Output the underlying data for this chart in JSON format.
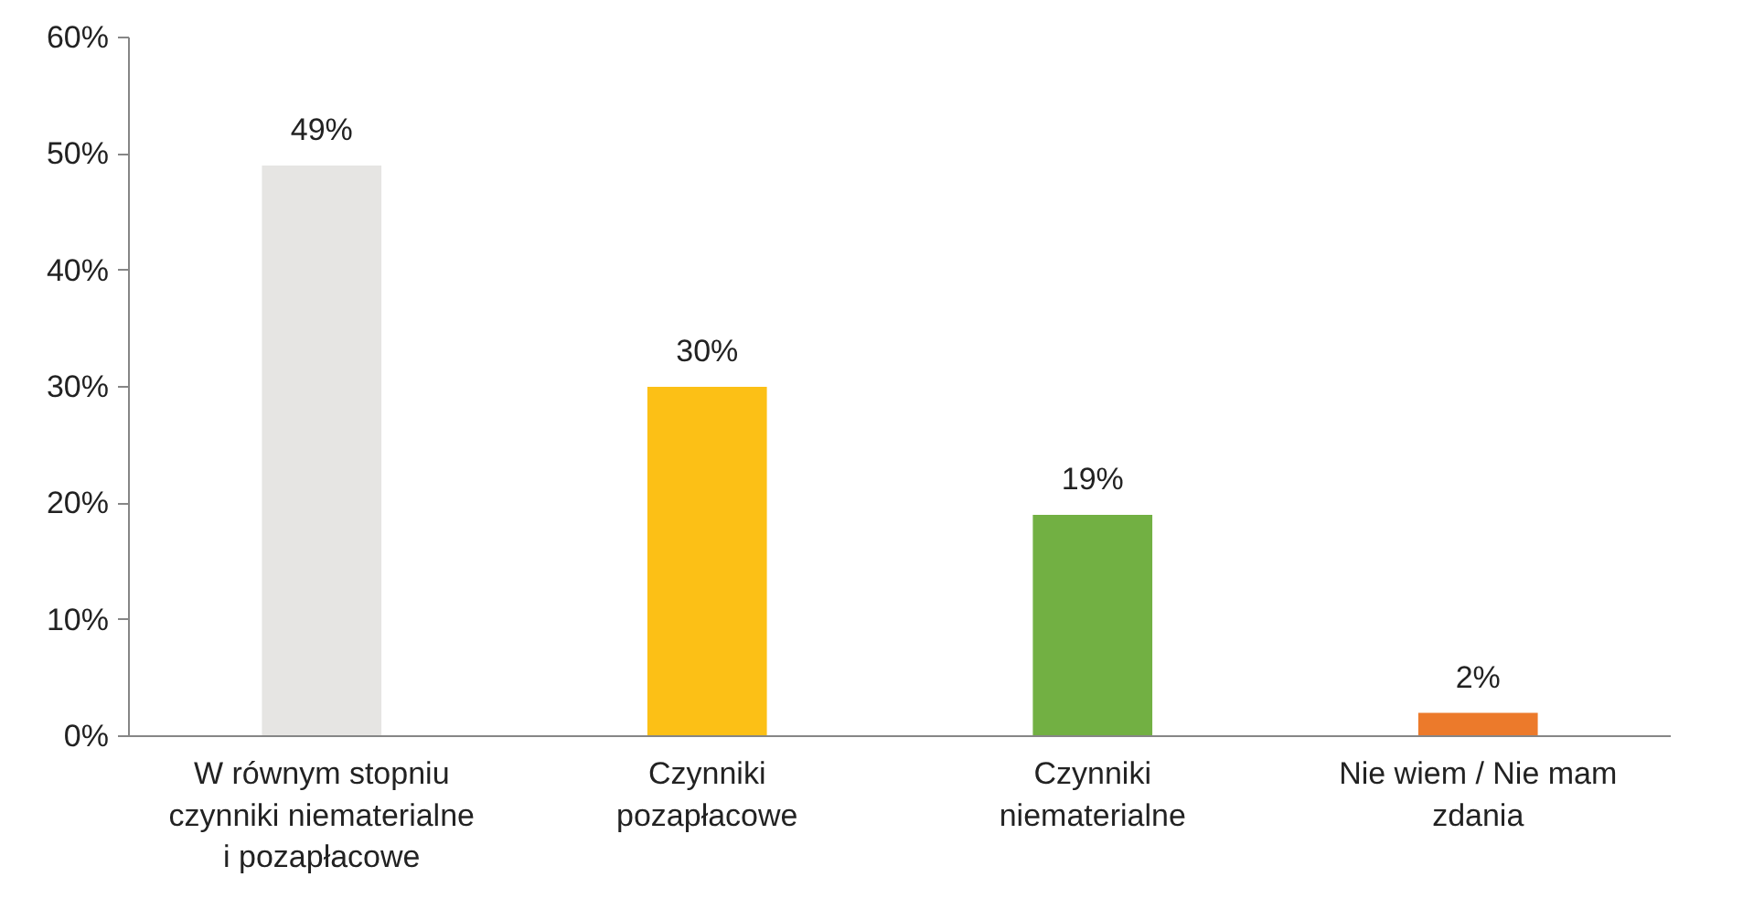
{
  "chart_data": {
    "type": "bar",
    "categories": [
      "W równym stopniu\nczynniki niematerialne\ni pozapłacowe",
      "Czynniki\npozapłacowe",
      "Czynniki\nniematerialne",
      "Nie wiem / Nie mam\nzdania"
    ],
    "values": [
      49,
      30,
      19,
      2
    ],
    "colors": [
      "#e6e5e3",
      "#fcc016",
      "#72b043",
      "#ec7a2b"
    ],
    "ylim": [
      0,
      60
    ],
    "yticks": [
      {
        "value": 0,
        "label": "0%"
      },
      {
        "value": 10,
        "label": "10%"
      },
      {
        "value": 20,
        "label": "20%"
      },
      {
        "value": 30,
        "label": "30%"
      },
      {
        "value": 40,
        "label": "40%"
      },
      {
        "value": 50,
        "label": "50%"
      },
      {
        "value": 60,
        "label": "60%"
      }
    ],
    "value_labels": [
      "49%",
      "30%",
      "19%",
      "2%"
    ],
    "grid": false
  }
}
